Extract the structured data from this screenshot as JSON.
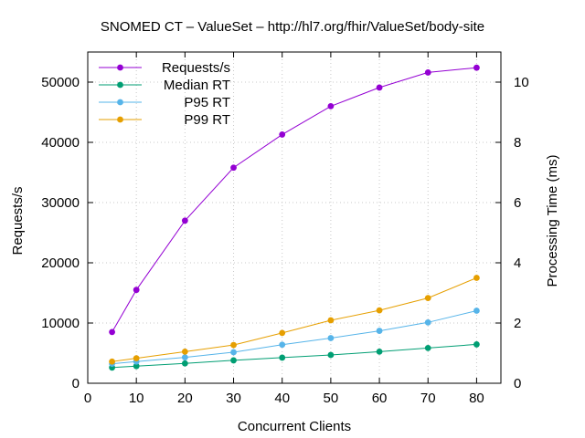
{
  "chart_data": {
    "type": "line",
    "title": "SNOMED CT – ValueSet – http://hl7.org/fhir/ValueSet/body-site",
    "xlabel": "Concurrent Clients",
    "ylabel": "Requests/s",
    "y2label": "Processing Time (ms)",
    "xlim": [
      0,
      85
    ],
    "ylim": [
      0,
      55000
    ],
    "y2lim": [
      0,
      11
    ],
    "xticks": [
      0,
      10,
      20,
      30,
      40,
      50,
      60,
      70,
      80
    ],
    "yticks": [
      0,
      10000,
      20000,
      30000,
      40000,
      50000
    ],
    "y2ticks": [
      0,
      2,
      4,
      6,
      8,
      10
    ],
    "grid": true,
    "legend_position": "top-left",
    "x": [
      5,
      10,
      20,
      30,
      40,
      50,
      60,
      70,
      80
    ],
    "series": [
      {
        "name": "Requests/s",
        "axis": "y",
        "color": "#9400d3",
        "values": [
          8500,
          15500,
          27000,
          35800,
          41300,
          46000,
          49100,
          51600,
          52400
        ]
      },
      {
        "name": "Median RT",
        "axis": "y2",
        "color": "#009e73",
        "values": [
          0.52,
          0.57,
          0.66,
          0.76,
          0.85,
          0.94,
          1.05,
          1.17,
          1.29
        ]
      },
      {
        "name": "P95 RT",
        "axis": "y2",
        "color": "#56b4e9",
        "values": [
          0.65,
          0.72,
          0.86,
          1.03,
          1.28,
          1.5,
          1.74,
          2.02,
          2.41
        ]
      },
      {
        "name": "P99 RT",
        "axis": "y2",
        "color": "#e69f00",
        "values": [
          0.72,
          0.83,
          1.05,
          1.27,
          1.67,
          2.09,
          2.42,
          2.83,
          3.5
        ]
      }
    ]
  }
}
